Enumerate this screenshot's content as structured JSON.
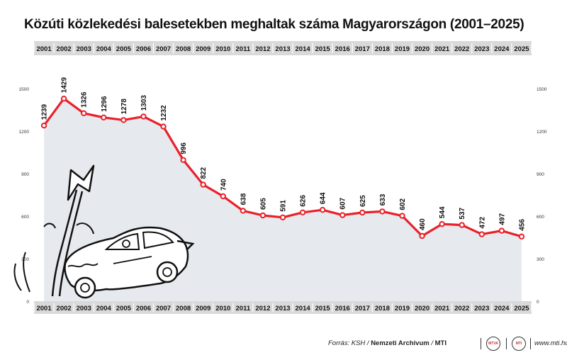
{
  "chart_data": {
    "type": "line",
    "title": "Közúti közlekedési balesetekben meghaltak száma Magyarországon (2001–2025)",
    "categories": [
      "2001",
      "2002",
      "2003",
      "2004",
      "2005",
      "2006",
      "2007",
      "2008",
      "2009",
      "2010",
      "2011",
      "2012",
      "2013",
      "2014",
      "2015",
      "2016",
      "2017",
      "2018",
      "2019",
      "2020",
      "2021",
      "2022",
      "2023",
      "2024",
      "2025"
    ],
    "values": [
      1239,
      1429,
      1326,
      1296,
      1278,
      1303,
      1232,
      996,
      822,
      740,
      638,
      605,
      591,
      626,
      644,
      607,
      625,
      633,
      602,
      460,
      544,
      537,
      472,
      497,
      456
    ],
    "ylim": [
      0,
      1500
    ],
    "yticks": [
      0,
      300,
      600,
      900,
      1200,
      1500
    ],
    "ytick_labels": [
      "0",
      "300",
      "600",
      "900",
      "1200",
      "1500"
    ],
    "grid": false,
    "area_fill": true,
    "colors": {
      "line": "#e8212a",
      "area": "#e6e9ee",
      "band": "#d9d9d9"
    }
  },
  "footer": {
    "source_label": "Forrás: KSH / ",
    "source_archive": "Nemzeti Archívum",
    "source_sep": " / ",
    "source_mti": "MTI",
    "badge_left": "MTVA",
    "badge_right": "MTI",
    "url": "www.mti.hu"
  },
  "illustration": {
    "icon": "car-crash-into-signpost-icon"
  }
}
